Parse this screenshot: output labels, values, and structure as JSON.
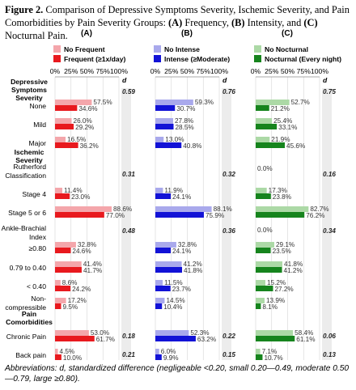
{
  "figure": {
    "label": "Figure 2.",
    "caption_pre": "Comparison of Depressive Symptoms Severity, Ischemic Severity, and Pain Comorbidities by Pain Severity Groups: ",
    "caption_a": "(A)",
    "caption_a_text": " Frequency, ",
    "caption_b": "(B)",
    "caption_b_text": " Intensity, and ",
    "caption_c": "(C)",
    "caption_c_text": " Nocturnal Pain.",
    "abbreviations": "Abbreviations: d, standardized difference (negligeable <0.20, small 0.20—0.49, moderate 0.50—0.79, large ≥0.80)."
  },
  "chart_data": [
    {
      "type": "bar",
      "panel": "(A)",
      "series": [
        {
          "name": "No Frequent",
          "color": "#f4a6ab"
        },
        {
          "name": "Frequent (≥1x/day)",
          "color": "#e8191e"
        }
      ],
      "x_ticks": [
        "0%",
        "25%",
        "50%",
        "75%",
        "100%"
      ],
      "xlim": [
        0,
        100
      ],
      "rows": [
        {
          "label": "None",
          "values": [
            57.5,
            34.6
          ],
          "texts": [
            "57.5%",
            "34.6%"
          ]
        },
        {
          "label": "Mild",
          "values": [
            26.0,
            29.2
          ],
          "texts": [
            "26.0%",
            "29.2%"
          ]
        },
        {
          "label": "Major",
          "values": [
            16.5,
            36.2
          ],
          "texts": [
            "16.5%",
            "36.2%"
          ]
        },
        {
          "label": "Rutherford Classification",
          "values": null
        },
        {
          "label": "Stage 4",
          "values": [
            11.4,
            23.0
          ],
          "texts": [
            "11.4%",
            "23.0%"
          ]
        },
        {
          "label": "Stage 5 or 6",
          "values": [
            88.6,
            77.0
          ],
          "texts": [
            "88.6%",
            "77.0%"
          ]
        },
        {
          "label": "Ankle-Brachial Index",
          "values": null
        },
        {
          "label": "≥0.80",
          "values": [
            32.8,
            24.6
          ],
          "texts": [
            "32.8%",
            "24.6%"
          ]
        },
        {
          "label": "0.79 to 0.40",
          "values": [
            41.4,
            41.7
          ],
          "texts": [
            "41.4%",
            "41.7%"
          ]
        },
        {
          "label": "< 0.40",
          "values": [
            8.6,
            24.2
          ],
          "texts": [
            "8.6%",
            "24.2%"
          ]
        },
        {
          "label": "Non-compressible",
          "values": [
            17.2,
            9.5
          ],
          "texts": [
            "17.2%",
            "9.5%"
          ]
        },
        {
          "label": "Chronic Pain",
          "values": [
            53.0,
            61.7
          ],
          "texts": [
            "53.0%",
            "61.7%"
          ]
        },
        {
          "label": "Back pain",
          "values": [
            4.5,
            10.0
          ],
          "texts": [
            "4.5%",
            "10.0%"
          ]
        }
      ],
      "d_values": {
        "depressive": "0.59",
        "rutherford": "0.31",
        "abi": "0.48",
        "chronic": "0.18",
        "back": "0.21"
      }
    },
    {
      "type": "bar",
      "panel": "(B)",
      "series": [
        {
          "name": "No Intense",
          "color": "#a9a9ec"
        },
        {
          "name": "Intense (≥Moderate)",
          "color": "#1212d6"
        }
      ],
      "x_ticks": [
        "0%",
        "25%",
        "50%",
        "75%",
        "100%"
      ],
      "xlim": [
        0,
        100
      ],
      "rows": [
        {
          "label": "None",
          "values": [
            59.3,
            30.7
          ],
          "texts": [
            "59.3%",
            "30.7%"
          ]
        },
        {
          "label": "Mild",
          "values": [
            27.8,
            28.5
          ],
          "texts": [
            "27.8%",
            "28.5%"
          ]
        },
        {
          "label": "Major",
          "values": [
            13.0,
            40.8
          ],
          "texts": [
            "13.0%",
            "40.8%"
          ]
        },
        {
          "label": "Rutherford Classification",
          "values": null
        },
        {
          "label": "Stage 4",
          "values": [
            11.9,
            24.1
          ],
          "texts": [
            "11.9%",
            "24.1%"
          ]
        },
        {
          "label": "Stage 5 or 6",
          "values": [
            88.1,
            75.9
          ],
          "texts": [
            "88.1%",
            "75.9%"
          ]
        },
        {
          "label": "Ankle-Brachial Index",
          "values": null
        },
        {
          "label": "≥0.80",
          "values": [
            32.8,
            24.1
          ],
          "texts": [
            "32.8%",
            "24.1%"
          ]
        },
        {
          "label": "0.79 to 0.40",
          "values": [
            41.2,
            41.8
          ],
          "texts": [
            "41.2%",
            "41.8%"
          ]
        },
        {
          "label": "< 0.40",
          "values": [
            11.5,
            23.7
          ],
          "texts": [
            "11.5%",
            "23.7%"
          ]
        },
        {
          "label": "Non-compressible",
          "values": [
            14.5,
            10.4
          ],
          "texts": [
            "14.5%",
            "10.4%"
          ]
        },
        {
          "label": "Chronic Pain",
          "values": [
            52.3,
            63.2
          ],
          "texts": [
            "52.3%",
            "63.2%"
          ]
        },
        {
          "label": "Back pain",
          "values": [
            6.0,
            9.9
          ],
          "texts": [
            "6.0%",
            "9.9%"
          ]
        }
      ],
      "d_values": {
        "depressive": "0.76",
        "rutherford": "0.32",
        "abi": "0.36",
        "chronic": "0.22",
        "back": "0.15"
      }
    },
    {
      "type": "bar",
      "panel": "(C)",
      "series": [
        {
          "name": "No Nocturnal",
          "color": "#acd9a6"
        },
        {
          "name": "Nocturnal (Every night)",
          "color": "#16841d"
        }
      ],
      "x_ticks": [
        "0%",
        "25%",
        "50%",
        "75%",
        "100%"
      ],
      "xlim": [
        0,
        100
      ],
      "rows": [
        {
          "label": "None",
          "values": [
            52.7,
            21.2
          ],
          "texts": [
            "52.7%",
            "21.2%"
          ]
        },
        {
          "label": "Mild",
          "values": [
            25.4,
            33.1
          ],
          "texts": [
            "25.4%",
            "33.1%"
          ]
        },
        {
          "label": "Major",
          "values": [
            21.9,
            45.6
          ],
          "texts": [
            "21.9%",
            "45.6%"
          ]
        },
        {
          "label": "Rutherford Classification",
          "values": [
            0.0,
            null
          ],
          "texts": [
            "0.0%",
            null
          ]
        },
        {
          "label": "Stage 4",
          "values": [
            17.3,
            23.8
          ],
          "texts": [
            "17.3%",
            "23.8%"
          ]
        },
        {
          "label": "Stage 5 or 6",
          "values": [
            82.7,
            76.2
          ],
          "texts": [
            "82.7%",
            "76.2%"
          ]
        },
        {
          "label": "Ankle-Brachial Index",
          "values": [
            0.0,
            null
          ],
          "texts": [
            "0.0%",
            null
          ]
        },
        {
          "label": "≥0.80",
          "values": [
            29.1,
            23.5
          ],
          "texts": [
            "29.1%",
            "23.5%"
          ]
        },
        {
          "label": "0.79 to 0.40",
          "values": [
            41.8,
            41.2
          ],
          "texts": [
            "41.8%",
            "41.2%"
          ]
        },
        {
          "label": "< 0.40",
          "values": [
            15.2,
            27.2
          ],
          "texts": [
            "15.2%",
            "27.2%"
          ]
        },
        {
          "label": "Non-compressible",
          "values": [
            13.9,
            8.1
          ],
          "texts": [
            "13.9%",
            "8.1%"
          ]
        },
        {
          "label": "Chronic Pain",
          "values": [
            58.4,
            61.1
          ],
          "texts": [
            "58.4%",
            "61.1%"
          ]
        },
        {
          "label": "Back pain",
          "values": [
            7.1,
            10.7
          ],
          "texts": [
            "7.1%",
            "10.7%"
          ]
        }
      ],
      "d_values": {
        "depressive": "0.75",
        "rutherford": "0.16",
        "abi": "0.34",
        "chronic": "0.06",
        "back": "0.13"
      }
    }
  ],
  "labels": {
    "d_header": "d",
    "depressive_heading": [
      "Depressive",
      "Symptoms",
      "Severity"
    ],
    "ischemic_heading": [
      "Ischemic",
      "Severity"
    ],
    "pain_heading": [
      "Pain",
      "Comorbidities"
    ],
    "row_labels": [
      [
        "None"
      ],
      [
        "Mild"
      ],
      [
        "Major"
      ],
      [
        "Rutherford",
        "Classification"
      ],
      [
        "Stage 4"
      ],
      [
        "Stage 5 or 6"
      ],
      [
        "Ankle-Brachial",
        "Index"
      ],
      [
        "≥0.80"
      ],
      [
        "0.79 to 0.40"
      ],
      [
        "< 0.40"
      ],
      [
        "Non-",
        "compressible"
      ],
      [
        "Chronic Pain"
      ],
      [
        "Back pain"
      ]
    ]
  }
}
